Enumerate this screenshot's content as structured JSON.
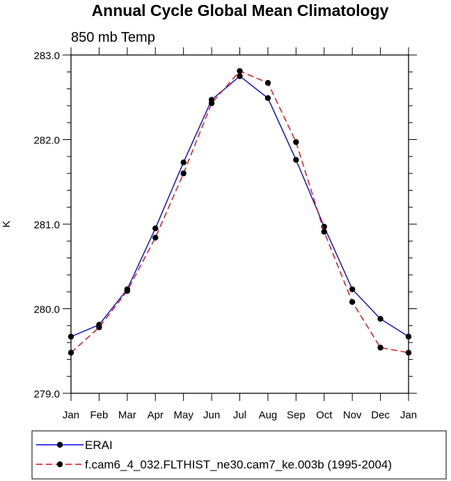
{
  "chart_data": {
    "type": "line",
    "title": "Annual Cycle Global Mean Climatology",
    "subtitle": "850 mb Temp",
    "xlabel": "",
    "ylabel": "K",
    "categories": [
      "Jan",
      "Feb",
      "Mar",
      "Apr",
      "May",
      "Jun",
      "Jul",
      "Aug",
      "Sep",
      "Oct",
      "Nov",
      "Dec",
      "Jan"
    ],
    "ylim": [
      279.0,
      283.0
    ],
    "yticks": [
      "279.0",
      "280.0",
      "281.0",
      "282.0",
      "283.0"
    ],
    "grid": false,
    "legend_position": "bottom",
    "series": [
      {
        "name": "ERAI",
        "color": "#0000ff",
        "dash": "solid",
        "values": [
          279.67,
          279.81,
          280.23,
          280.95,
          281.73,
          282.47,
          282.75,
          282.49,
          281.76,
          280.97,
          280.23,
          279.88,
          279.67
        ]
      },
      {
        "name": "f.cam6_4_032.FLTHIST_ne30.cam7_ke.003b (1995-2004)",
        "color": "#ff0000",
        "dash": "dashed",
        "values": [
          279.48,
          279.78,
          280.21,
          280.84,
          281.6,
          282.43,
          282.81,
          282.67,
          281.97,
          280.91,
          280.08,
          279.54,
          279.48
        ]
      }
    ]
  }
}
